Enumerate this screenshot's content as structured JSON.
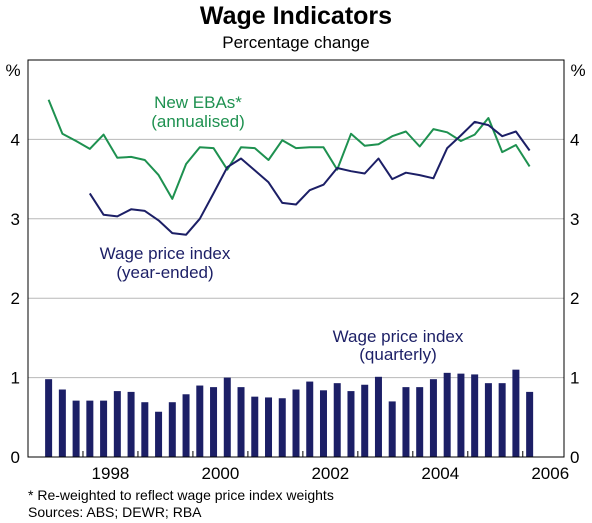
{
  "chart_data": {
    "type": "bar+line",
    "title": "Wage Indicators",
    "subtitle": "Percentage change",
    "y_unit_left": "%",
    "y_unit_right": "%",
    "ylim": [
      0,
      5
    ],
    "yticks": [
      0,
      1,
      2,
      3,
      4
    ],
    "xlim": [
      1997.0,
      2006.75
    ],
    "xticks": [
      1998,
      2000,
      2002,
      2004,
      2006
    ],
    "grid": true,
    "colors": {
      "ebas": "#1e9150",
      "wpi": "#1c1f66",
      "bars": "#1c1f66"
    },
    "labels": {
      "ebas_line1": "New EBAs*",
      "ebas_line2": "(annualised)",
      "wpi_line1": "Wage price index",
      "wpi_line2": "(year-ended)",
      "q_line1": "Wage price index",
      "q_line2": "(quarterly)"
    },
    "series": [
      {
        "name": "New EBAs*",
        "kind": "line",
        "x": [
          1997.375,
          1997.625,
          1997.875,
          1998.125,
          1998.375,
          1998.625,
          1998.875,
          1999.125,
          1999.375,
          1999.625,
          1999.875,
          2000.125,
          2000.375,
          2000.625,
          2000.875,
          2001.125,
          2001.375,
          2001.625,
          2001.875,
          2002.125,
          2002.375,
          2002.625,
          2002.875,
          2003.125,
          2003.375,
          2003.625,
          2003.875,
          2004.125,
          2004.375,
          2004.625,
          2004.875,
          2005.125,
          2005.375,
          2005.625,
          2005.875,
          2006.125
        ],
        "values": [
          4.5,
          4.07,
          3.98,
          3.88,
          4.06,
          3.77,
          3.78,
          3.74,
          3.55,
          3.25,
          3.69,
          3.9,
          3.89,
          3.62,
          3.9,
          3.89,
          3.74,
          3.99,
          3.89,
          3.9,
          3.9,
          3.62,
          4.07,
          3.92,
          3.94,
          4.04,
          4.1,
          3.91,
          4.13,
          4.09,
          3.98,
          4.06,
          4.27,
          3.84,
          3.93,
          3.66
        ]
      },
      {
        "name": "Wage price index (year-ended)",
        "kind": "line",
        "x": [
          1998.125,
          1998.375,
          1998.625,
          1998.875,
          1999.125,
          1999.375,
          1999.625,
          1999.875,
          2000.125,
          2000.375,
          2000.625,
          2000.875,
          2001.125,
          2001.375,
          2001.625,
          2001.875,
          2002.125,
          2002.375,
          2002.625,
          2002.875,
          2003.125,
          2003.375,
          2003.625,
          2003.875,
          2004.125,
          2004.375,
          2004.625,
          2004.875,
          2005.125,
          2005.375,
          2005.625,
          2005.875,
          2006.125
        ],
        "values": [
          3.32,
          3.05,
          3.03,
          3.12,
          3.1,
          2.98,
          2.82,
          2.8,
          3.0,
          3.32,
          3.65,
          3.76,
          3.61,
          3.46,
          3.2,
          3.18,
          3.36,
          3.43,
          3.64,
          3.6,
          3.57,
          3.76,
          3.5,
          3.58,
          3.55,
          3.51,
          3.89,
          4.05,
          4.22,
          4.18,
          4.04,
          4.1,
          3.86
        ]
      },
      {
        "name": "Wage price index (quarterly)",
        "kind": "bar",
        "x": [
          1997.375,
          1997.625,
          1997.875,
          1998.125,
          1998.375,
          1998.625,
          1998.875,
          1999.125,
          1999.375,
          1999.625,
          1999.875,
          2000.125,
          2000.375,
          2000.625,
          2000.875,
          2001.125,
          2001.375,
          2001.625,
          2001.875,
          2002.125,
          2002.375,
          2002.625,
          2002.875,
          2003.125,
          2003.375,
          2003.625,
          2003.875,
          2004.125,
          2004.375,
          2004.625,
          2004.875,
          2005.125,
          2005.375,
          2005.625,
          2005.875,
          2006.125
        ],
        "values": [
          0.98,
          0.85,
          0.71,
          0.71,
          0.71,
          0.83,
          0.82,
          0.69,
          0.57,
          0.69,
          0.79,
          0.9,
          0.88,
          1.0,
          0.88,
          0.76,
          0.75,
          0.74,
          0.85,
          0.95,
          0.84,
          0.93,
          0.83,
          0.91,
          1.01,
          0.7,
          0.88,
          0.88,
          0.98,
          1.06,
          1.05,
          1.04,
          0.93,
          0.93,
          1.1,
          0.82
        ]
      }
    ]
  },
  "footnotes": {
    "note": "*   Re-weighted to reflect wage price index weights",
    "sources": "Sources: ABS; DEWR; RBA"
  }
}
